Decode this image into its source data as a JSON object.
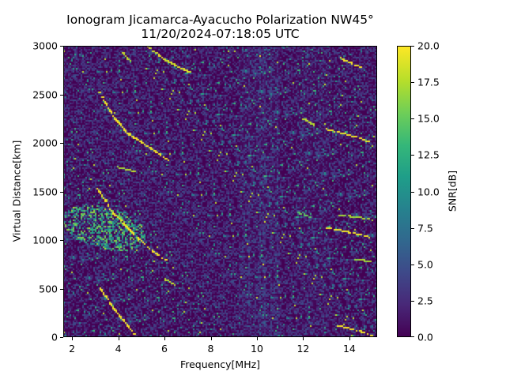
{
  "chart_data": {
    "type": "heatmap",
    "title": "Ionogram Jicamarca-Ayacucho Polarization NW45°",
    "subtitle": "11/20/2024-07:18:05 UTC",
    "xlabel": "Frequency[MHz]",
    "ylabel": "Virtual Distance[km]",
    "xlim": [
      1.62,
      15.2
    ],
    "ylim": [
      0,
      3000
    ],
    "x_ticks": [
      "2",
      "4",
      "6",
      "8",
      "10",
      "12",
      "14"
    ],
    "x_tick_values": [
      2,
      4,
      6,
      8,
      10,
      12,
      14
    ],
    "y_ticks": [
      "0",
      "500",
      "1000",
      "1500",
      "2000",
      "2500",
      "3000"
    ],
    "y_tick_values": [
      0,
      500,
      1000,
      1500,
      2000,
      2500,
      3000
    ],
    "colorbar": {
      "label": "SNR[dB]",
      "range": [
        0,
        20
      ],
      "ticks": [
        "0.0",
        "2.5",
        "5.0",
        "7.5",
        "10.0",
        "12.5",
        "15.0",
        "17.5",
        "20.0"
      ],
      "tick_values": [
        0,
        2.5,
        5,
        7.5,
        10,
        12.5,
        15,
        17.5,
        20
      ],
      "colormap": "viridis",
      "colors": [
        "#440154",
        "#482878",
        "#3e4989",
        "#31688e",
        "#26828e",
        "#1f9e89",
        "#35b779",
        "#6ece58",
        "#b5de2b",
        "#fde725"
      ]
    },
    "grid": false,
    "traces": [
      {
        "name": "echo-1",
        "points": [
          [
            3.2,
            510
          ],
          [
            3.8,
            300
          ],
          [
            4.4,
            120
          ],
          [
            4.8,
            0
          ]
        ],
        "snr": 19
      },
      {
        "name": "echo-2",
        "points": [
          [
            3.1,
            1530
          ],
          [
            3.8,
            1270
          ],
          [
            4.6,
            1080
          ],
          [
            5.4,
            900
          ],
          [
            6.1,
            790
          ]
        ],
        "snr": 19
      },
      {
        "name": "echo-3",
        "points": [
          [
            3.2,
            2520
          ],
          [
            3.8,
            2270
          ],
          [
            4.4,
            2100
          ],
          [
            5.3,
            1960
          ],
          [
            6.2,
            1820
          ]
        ],
        "snr": 19
      },
      {
        "name": "echo-4",
        "points": [
          [
            5.3,
            2990
          ],
          [
            6.0,
            2860
          ],
          [
            6.8,
            2760
          ],
          [
            7.2,
            2720
          ]
        ],
        "snr": 18
      },
      {
        "name": "echo-5",
        "points": [
          [
            4.2,
            2930
          ],
          [
            4.5,
            2840
          ]
        ],
        "snr": 17
      },
      {
        "name": "echo-6",
        "points": [
          [
            4.0,
            1750
          ],
          [
            4.8,
            1700
          ]
        ],
        "snr": 17
      },
      {
        "name": "echo-7",
        "points": [
          [
            6.0,
            600
          ],
          [
            6.5,
            530
          ]
        ],
        "snr": 17
      },
      {
        "name": "echo-8",
        "points": [
          [
            13.6,
            2870
          ],
          [
            14.5,
            2780
          ]
        ],
        "snr": 19
      },
      {
        "name": "echo-9",
        "points": [
          [
            12.0,
            2250
          ],
          [
            12.5,
            2180
          ]
        ],
        "snr": 17
      },
      {
        "name": "echo-10",
        "points": [
          [
            13.0,
            2140
          ],
          [
            14.0,
            2080
          ],
          [
            14.9,
            2010
          ]
        ],
        "snr": 19
      },
      {
        "name": "echo-11",
        "points": [
          [
            13.0,
            1130
          ],
          [
            14.0,
            1080
          ],
          [
            14.9,
            1030
          ]
        ],
        "snr": 19
      },
      {
        "name": "echo-12",
        "points": [
          [
            13.5,
            1260
          ],
          [
            14.5,
            1230
          ],
          [
            15.1,
            1200
          ]
        ],
        "snr": 16
      },
      {
        "name": "echo-13",
        "points": [
          [
            13.5,
            120
          ],
          [
            14.5,
            60
          ],
          [
            15.0,
            10
          ]
        ],
        "snr": 19
      },
      {
        "name": "echo-14",
        "points": [
          [
            11.8,
            1280
          ],
          [
            12.4,
            1230
          ]
        ],
        "snr": 14
      },
      {
        "name": "echo-15",
        "points": [
          [
            14.2,
            800
          ],
          [
            15.0,
            780
          ]
        ],
        "snr": 16
      }
    ],
    "patches": [
      {
        "name": "spread-F",
        "x": [
          1.62,
          5.2
        ],
        "y": [
          900,
          1350
        ],
        "snr_mean": 11
      }
    ],
    "noise_snr_mean": 2.0
  }
}
